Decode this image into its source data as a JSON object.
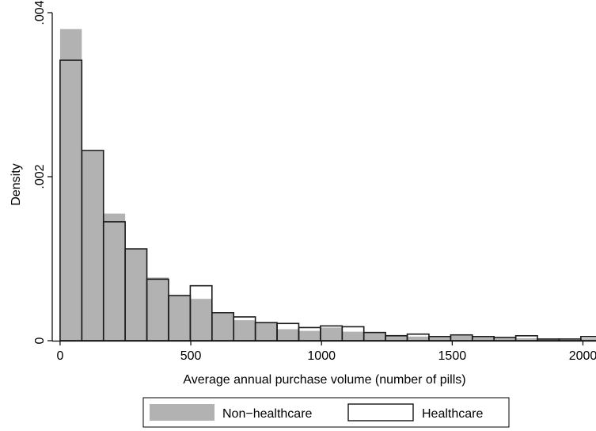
{
  "chart_data": {
    "type": "bar",
    "subtype": "overlaid-histogram",
    "xlabel": "Average annual purchase volume (number of pills)",
    "ylabel": "Density",
    "xlim": [
      -30,
      2050
    ],
    "ylim": [
      0,
      0.004
    ],
    "x_ticks": [
      0,
      500,
      1000,
      1500,
      2000
    ],
    "x_tick_labels": [
      "0",
      "500",
      "1000",
      "1500",
      "2000"
    ],
    "y_ticks": [
      0,
      0.002,
      0.004
    ],
    "y_tick_labels": [
      "0",
      ".002",
      ".004"
    ],
    "bin_width": 83,
    "bin_start": 0,
    "grid": false,
    "legend_position": "bottom",
    "series": [
      {
        "name": "Non−healthcare",
        "style": "filled",
        "color": "#b2b2b2",
        "values": [
          0.0038,
          0.00231,
          0.00155,
          0.00112,
          0.00077,
          0.00055,
          0.00051,
          0.00033,
          0.00025,
          0.00022,
          0.00014,
          0.00012,
          0.00016,
          0.00011,
          0.0001,
          7e-05,
          5e-05,
          4e-05,
          6e-05,
          4e-05,
          3e-05,
          3e-05,
          2e-05,
          1e-05,
          3e-05
        ]
      },
      {
        "name": "Healthcare",
        "style": "outline",
        "color": "#ffffff",
        "values": [
          0.00342,
          0.00232,
          0.00145,
          0.00112,
          0.00075,
          0.00055,
          0.00067,
          0.00034,
          0.00029,
          0.00022,
          0.00021,
          0.00016,
          0.00018,
          0.00017,
          0.0001,
          6e-05,
          8e-05,
          5e-05,
          7e-05,
          5e-05,
          4e-05,
          6e-05,
          2e-05,
          2e-05,
          5e-05
        ]
      }
    ]
  }
}
